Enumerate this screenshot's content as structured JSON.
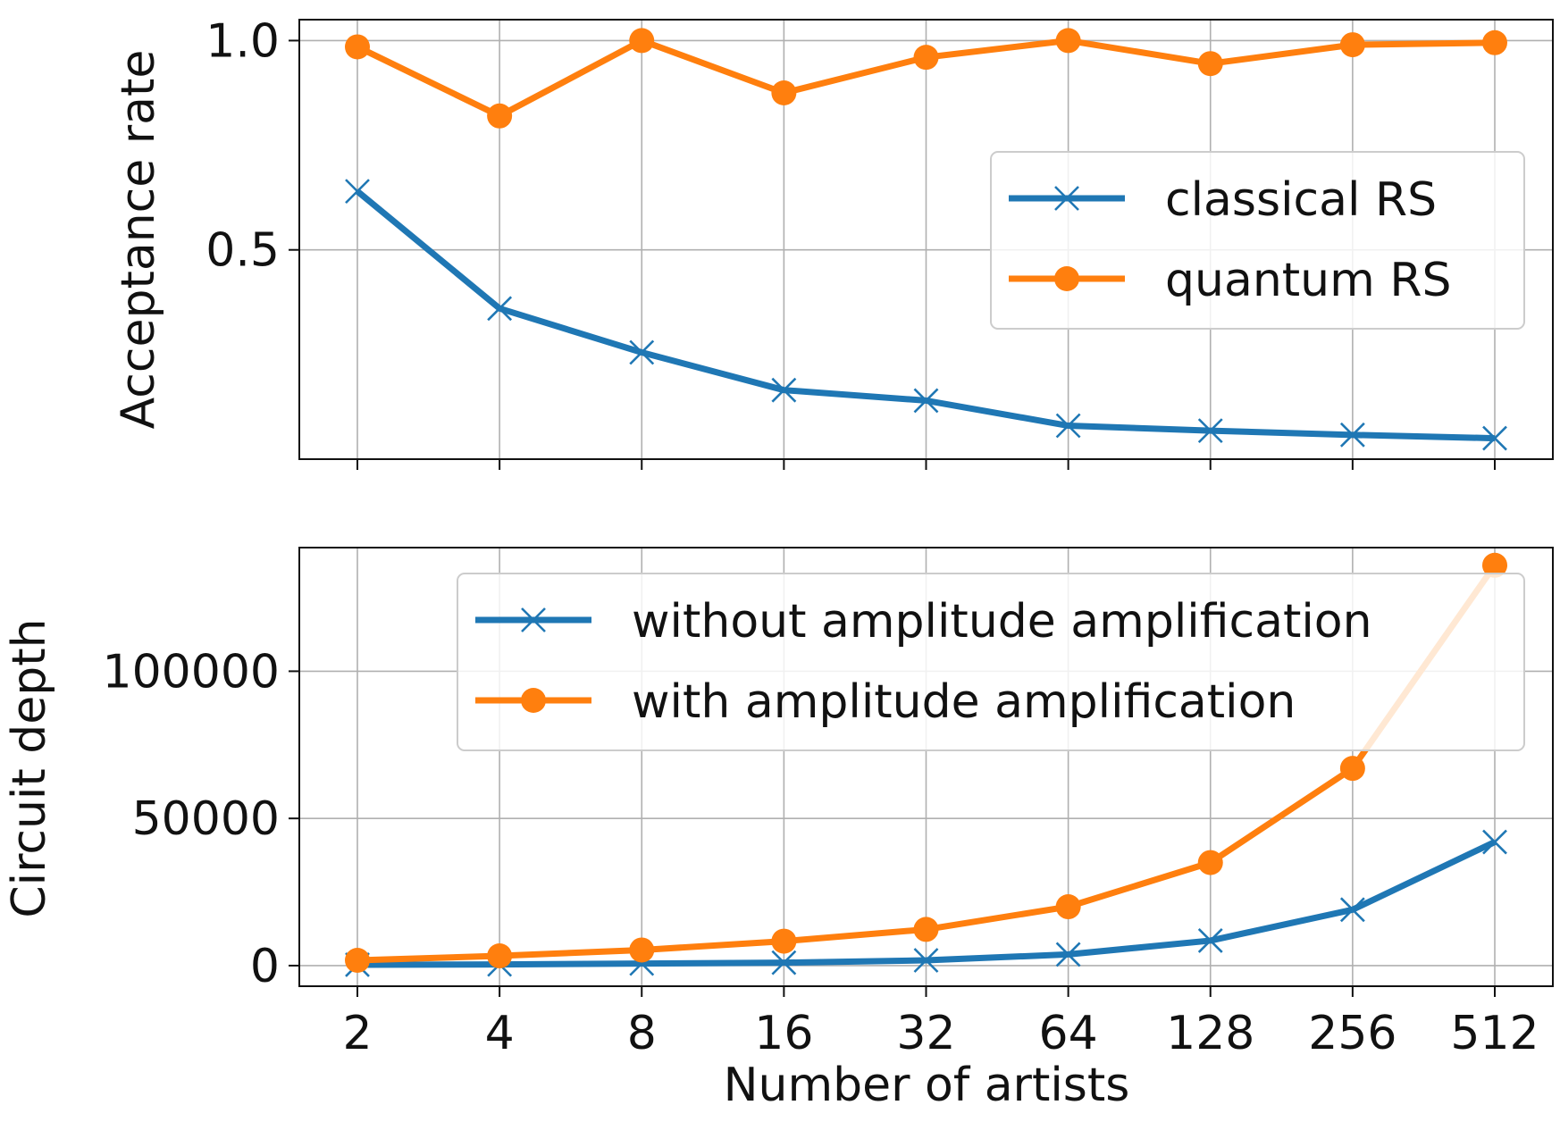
{
  "chart_data": [
    {
      "type": "line",
      "x_categories": [
        "2",
        "4",
        "8",
        "16",
        "32",
        "64",
        "128",
        "256",
        "512"
      ],
      "xlabel": "",
      "ylabel": "Acceptance rate",
      "ylim": [
        0.0,
        1.05
      ],
      "yticks": [
        "0.5",
        "1.0"
      ],
      "yticks_values": [
        0.5,
        1.0
      ],
      "grid": true,
      "legend_position": "center-right",
      "series": [
        {
          "name": "classical RS",
          "color": "#1f77b4",
          "marker": "x",
          "values": [
            0.64,
            0.36,
            0.255,
            0.165,
            0.14,
            0.08,
            0.068,
            0.058,
            0.05
          ]
        },
        {
          "name": "quantum RS",
          "color": "#ff7f0e",
          "marker": "circle",
          "values": [
            0.985,
            0.82,
            1.0,
            0.875,
            0.96,
            1.0,
            0.945,
            0.99,
            0.995
          ]
        }
      ]
    },
    {
      "type": "line",
      "x_categories": [
        "2",
        "4",
        "8",
        "16",
        "32",
        "64",
        "128",
        "256",
        "512"
      ],
      "xlabel": "Number of artists",
      "ylabel": "Circuit depth",
      "ylim": [
        -7000,
        142000
      ],
      "yticks": [
        "0",
        "50000",
        "100000"
      ],
      "yticks_values": [
        0,
        50000,
        100000
      ],
      "grid": true,
      "legend_position": "upper-right",
      "series": [
        {
          "name": "without amplitude amplification",
          "color": "#1f77b4",
          "marker": "x",
          "values": [
            300,
            400,
            700,
            1000,
            1800,
            3800,
            8500,
            19000,
            42000
          ]
        },
        {
          "name": "with amplitude amplification",
          "color": "#ff7f0e",
          "marker": "circle",
          "values": [
            1800,
            3300,
            5300,
            8300,
            12300,
            20000,
            35000,
            67000,
            136000
          ]
        }
      ]
    }
  ]
}
